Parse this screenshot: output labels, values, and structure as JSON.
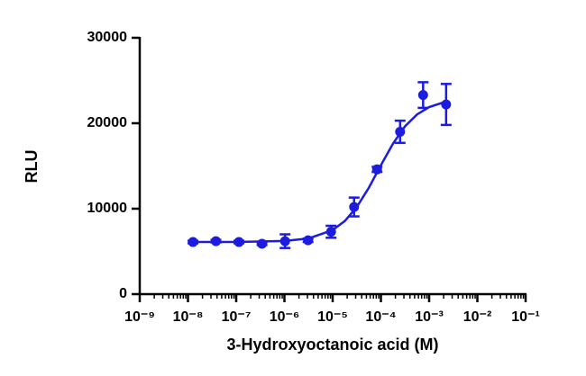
{
  "chart_data": {
    "type": "dose-response",
    "xlabel": "3-Hydroxyoctanoic acid (M)",
    "ylabel": "RLU",
    "xscale": "log",
    "xlim": [
      1e-09,
      0.1
    ],
    "xticks": [
      {
        "value": 1e-09,
        "label": "10⁻⁹"
      },
      {
        "value": 1e-08,
        "label": "10⁻⁸"
      },
      {
        "value": 1e-07,
        "label": "10⁻⁷"
      },
      {
        "value": 1e-06,
        "label": "10⁻⁶"
      },
      {
        "value": 1e-05,
        "label": "10⁻⁵"
      },
      {
        "value": 0.0001,
        "label": "10⁻⁴"
      },
      {
        "value": 0.001,
        "label": "10⁻³"
      },
      {
        "value": 0.01,
        "label": "10⁻²"
      },
      {
        "value": 0.1,
        "label": "10⁻¹"
      }
    ],
    "minor_ticks": true,
    "ylim": [
      0,
      30000
    ],
    "yticks": [
      0,
      10000,
      20000,
      30000
    ],
    "color": "#1c1ce0",
    "x": [
      1.27e-08,
      3.8e-08,
      1.14e-07,
      3.43e-07,
      1.03e-06,
      3.09e-06,
      9.26e-06,
      2.78e-05,
      8.33e-05,
      0.00025,
      0.00075,
      0.00225
    ],
    "values": [
      6100,
      6200,
      6100,
      5900,
      6200,
      6300,
      7300,
      10200,
      14600,
      19000,
      23300,
      22200
    ],
    "errors": [
      150,
      150,
      150,
      150,
      800,
      200,
      700,
      1100,
      300,
      1300,
      1500,
      2400
    ],
    "fit": {
      "x": [
        1.26e-08,
        1e-07,
        1e-06,
        3.16e-06,
        1e-05,
        1.78e-05,
        3.16e-05,
        5.62e-05,
        0.0001,
        0.000178,
        0.000316,
        0.000562,
        0.001,
        0.00224
      ],
      "values": [
        6100,
        6110,
        6220,
        6514,
        7500,
        8550,
        10190,
        12450,
        15085,
        17610,
        19640,
        21030,
        21894,
        22530
      ]
    }
  }
}
